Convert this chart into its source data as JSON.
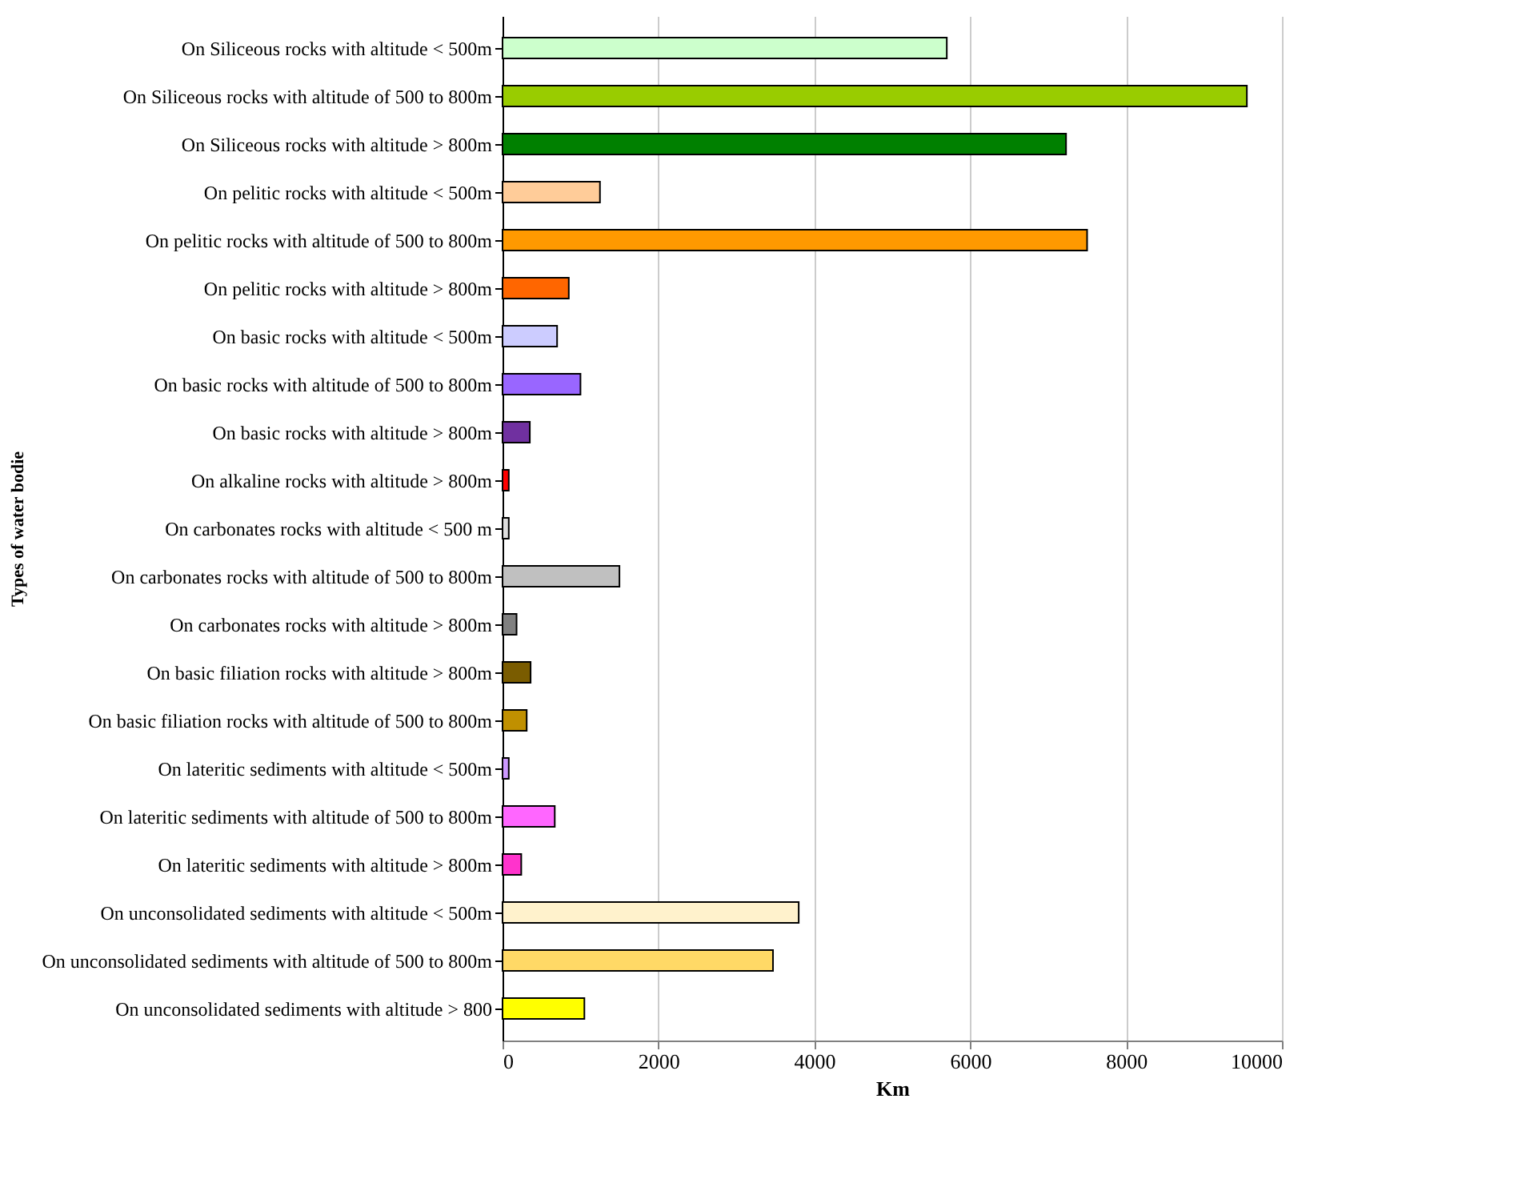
{
  "chart_data": {
    "type": "bar",
    "orientation": "horizontal",
    "xlabel": "Km",
    "ylabel": "Types of water bodie",
    "categories": [
      "On Siliceous rocks with altitude < 500m",
      "On Siliceous rocks with altitude of 500 to 800m",
      "On Siliceous rocks with altitude > 800m",
      "On pelitic rocks with altitude < 500m",
      "On pelitic rocks with  altitude of 500 to 800m",
      "On pelitic rocks with altitude > 800m ",
      "On basic rocks with altitude < 500m",
      "On basic rocks with altitude of 500 to 800m",
      "On basic rocks with altitude > 800m",
      "On alkaline rocks with altitude > 800m",
      "On carbonates rocks with altitude < 500 m",
      "On carbonates rocks with altitude of  500 to 800m",
      "On carbonates rocks with altitude > 800m",
      "On basic filiation rocks with altitude > 800m",
      "On basic filiation rocks with altitude of 500 to 800m",
      "On lateritic sediments with altitude < 500m",
      "On lateritic sediments with altitude of 500 to 800m",
      "On lateritic sediments with altitude > 800m",
      "On unconsolidated sediments with altitude < 500m",
      "On unconsolidated sediments with altitude of 500 to 800m",
      "On unconsolidated sediments with altitude >  800"
    ],
    "values": [
      5700,
      9550,
      7230,
      1250,
      7500,
      850,
      700,
      1000,
      350,
      80,
      80,
      1500,
      180,
      360,
      310,
      80,
      670,
      240,
      3800,
      3470,
      1050
    ],
    "colors": [
      "#ccffcc",
      "#99cc00",
      "#008000",
      "#ffcc99",
      "#ff9900",
      "#ff6600",
      "#ccccff",
      "#9966ff",
      "#7030a0",
      "#ff0000",
      "#dddddd",
      "#c0c0c0",
      "#808080",
      "#7a5c00",
      "#c09000",
      "#cc99ff",
      "#ff66ff",
      "#ff33cc",
      "#fff2cc",
      "#ffd966",
      "#ffff00"
    ],
    "xlim": [
      0,
      10000
    ],
    "xticks": [
      0,
      2000,
      4000,
      6000,
      8000,
      10000
    ],
    "grid": "x"
  }
}
